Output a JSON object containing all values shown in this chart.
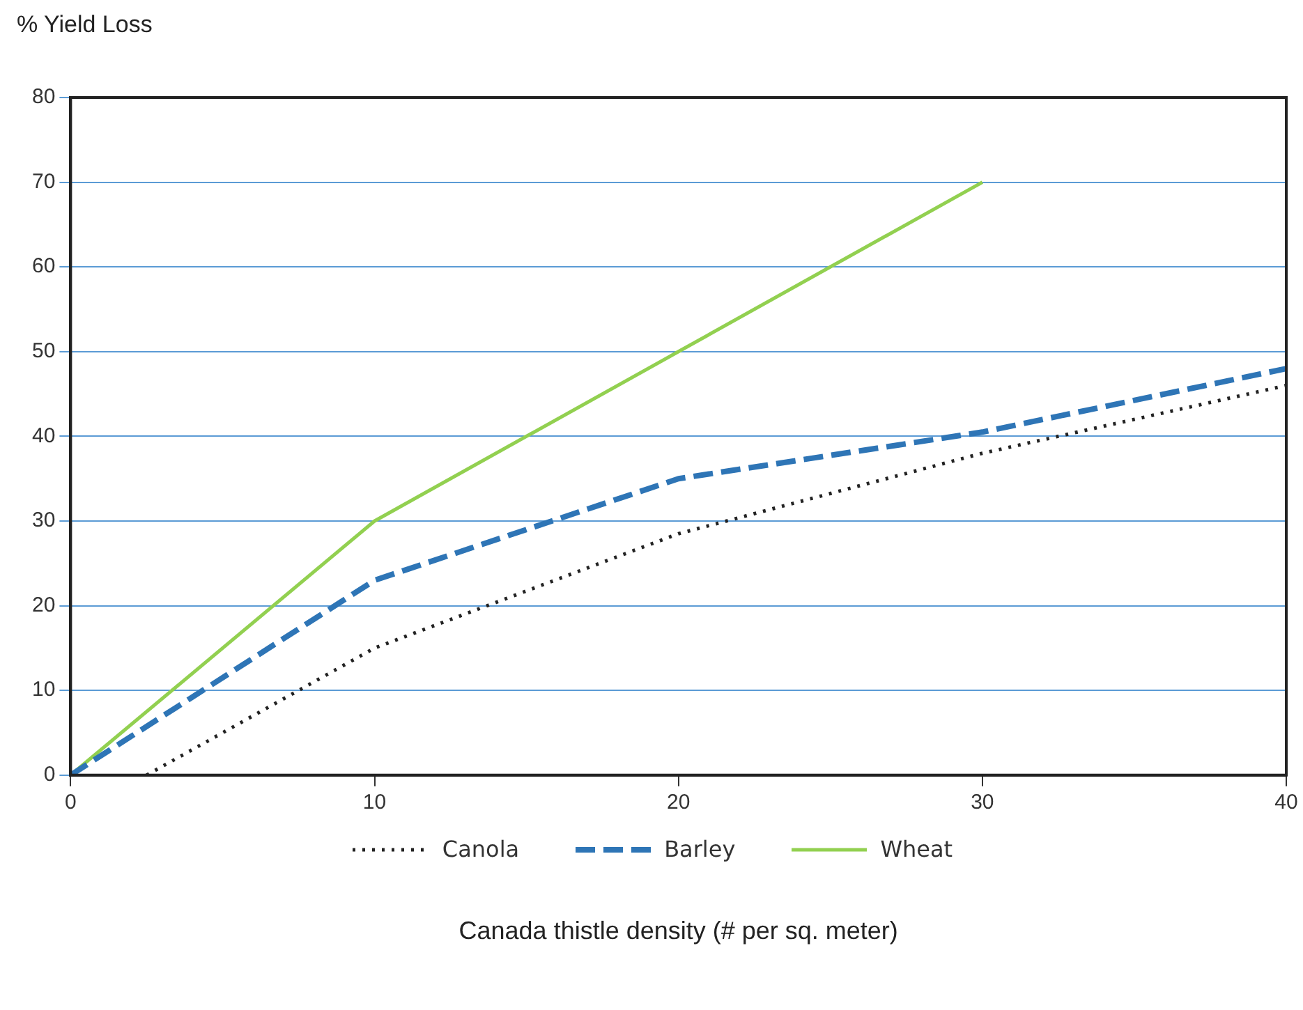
{
  "chart_data": {
    "type": "line",
    "ylabel": "% Yield Loss",
    "xlabel": "Canada thistle density (# per sq. meter)",
    "xlim": [
      0,
      40
    ],
    "xticks": [
      0,
      10,
      20,
      30,
      40
    ],
    "ylim": [
      0,
      80
    ],
    "yticks": [
      0,
      10,
      20,
      30,
      40,
      50,
      60,
      70,
      80
    ],
    "grid": "y",
    "legend": "bottom",
    "marker": "none",
    "series": [
      {
        "name": "Canola",
        "color": "#222222",
        "line_style": "dotted",
        "x": [
          2.5,
          10,
          20,
          30,
          40
        ],
        "values": [
          0,
          15,
          28.5,
          38,
          46
        ]
      },
      {
        "name": "Barley",
        "color": "#2e75b6",
        "line_style": "dashed",
        "x": [
          0,
          10,
          20,
          30,
          40
        ],
        "values": [
          0,
          23,
          35,
          40.5,
          48
        ]
      },
      {
        "name": "Wheat",
        "color": "#92d050",
        "line_style": "solid",
        "x": [
          0,
          10,
          20,
          30
        ],
        "values": [
          0,
          30,
          50,
          70
        ]
      }
    ]
  }
}
